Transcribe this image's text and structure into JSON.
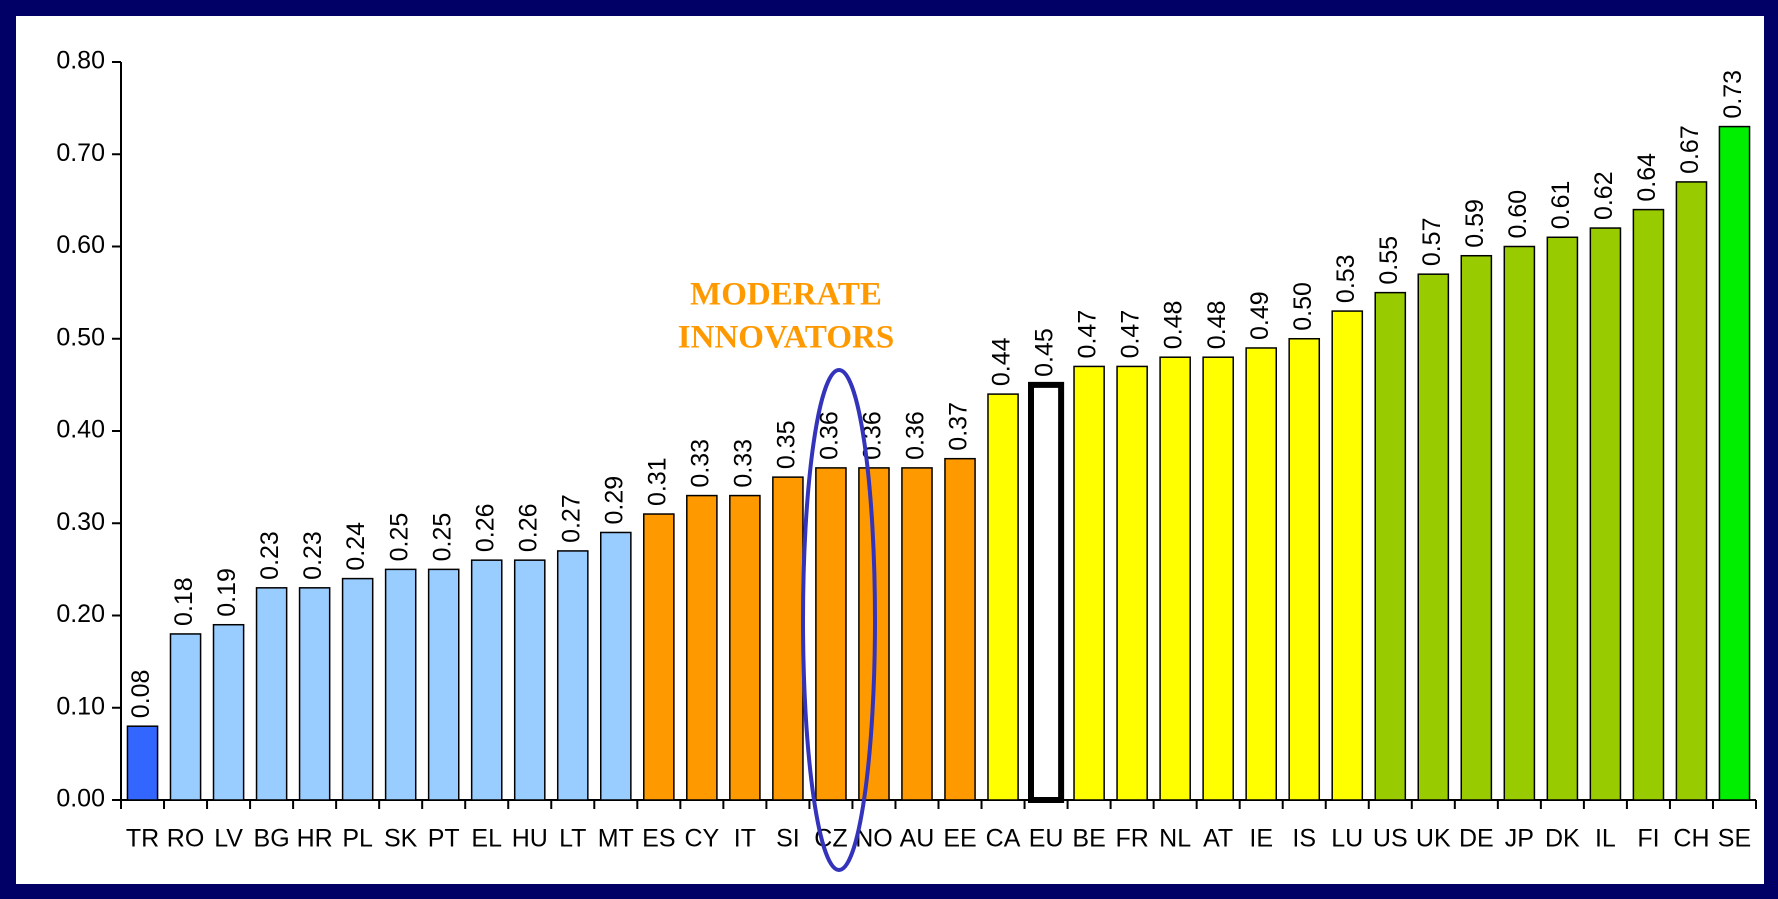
{
  "chart_data": {
    "type": "bar",
    "annotations": [
      "MODERATE",
      "INNOVATORS"
    ],
    "categories": [
      "TR",
      "RO",
      "LV",
      "BG",
      "HR",
      "PL",
      "SK",
      "PT",
      "EL",
      "HU",
      "LT",
      "MT",
      "ES",
      "CY",
      "IT",
      "SI",
      "CZ",
      "NO",
      "AU",
      "EE",
      "CA",
      "EU",
      "BE",
      "FR",
      "NL",
      "AT",
      "IE",
      "IS",
      "LU",
      "US",
      "UK",
      "DE",
      "JP",
      "DK",
      "IL",
      "FI",
      "CH",
      "SE"
    ],
    "values": [
      0.08,
      0.18,
      0.19,
      0.23,
      0.23,
      0.24,
      0.25,
      0.25,
      0.26,
      0.26,
      0.27,
      0.29,
      0.31,
      0.33,
      0.33,
      0.35,
      0.36,
      0.36,
      0.36,
      0.37,
      0.44,
      0.45,
      0.47,
      0.47,
      0.48,
      0.48,
      0.49,
      0.5,
      0.53,
      0.55,
      0.57,
      0.59,
      0.6,
      0.61,
      0.62,
      0.64,
      0.67,
      0.73
    ],
    "value_labels": [
      "0.08",
      "0.18",
      "0.19",
      "0.23",
      "0.23",
      "0.24",
      "0.25",
      "0.25",
      "0.26",
      "0.26",
      "0.27",
      "0.29",
      "0.31",
      "0.33",
      "0.33",
      "0.35",
      "0.36",
      "0.36",
      "0.36",
      "0.37",
      "0.44",
      "0.45",
      "0.47",
      "0.47",
      "0.48",
      "0.48",
      "0.49",
      "0.50",
      "0.53",
      "0.55",
      "0.57",
      "0.59",
      "0.60",
      "0.61",
      "0.62",
      "0.64",
      "0.67",
      "0.73"
    ],
    "colors": [
      "#3366ff",
      "#99ccff",
      "#99ccff",
      "#99ccff",
      "#99ccff",
      "#99ccff",
      "#99ccff",
      "#99ccff",
      "#99ccff",
      "#99ccff",
      "#99ccff",
      "#99ccff",
      "#ff9900",
      "#ff9900",
      "#ff9900",
      "#ff9900",
      "#ff9900",
      "#ff9900",
      "#ff9900",
      "#ff9900",
      "#ffff00",
      "#ffffff",
      "#ffff00",
      "#ffff00",
      "#ffff00",
      "#ffff00",
      "#ffff00",
      "#ffff00",
      "#ffff00",
      "#99cc00",
      "#99cc00",
      "#99cc00",
      "#99cc00",
      "#99cc00",
      "#99cc00",
      "#99cc00",
      "#99cc00",
      "#00ee00"
    ],
    "ylim": [
      0,
      0.8
    ],
    "yticks": [
      {
        "value": 0,
        "label": "0.00"
      },
      {
        "value": 0.1,
        "label": "0.10"
      },
      {
        "value": 0.2,
        "label": "0.20"
      },
      {
        "value": 0.3,
        "label": "0.30"
      },
      {
        "value": 0.4,
        "label": "0.40"
      },
      {
        "value": 0.5,
        "label": "0.50"
      },
      {
        "value": 0.6,
        "label": "0.60"
      },
      {
        "value": 0.7,
        "label": "0.70"
      },
      {
        "value": 0.8,
        "label": "0.80"
      }
    ]
  }
}
